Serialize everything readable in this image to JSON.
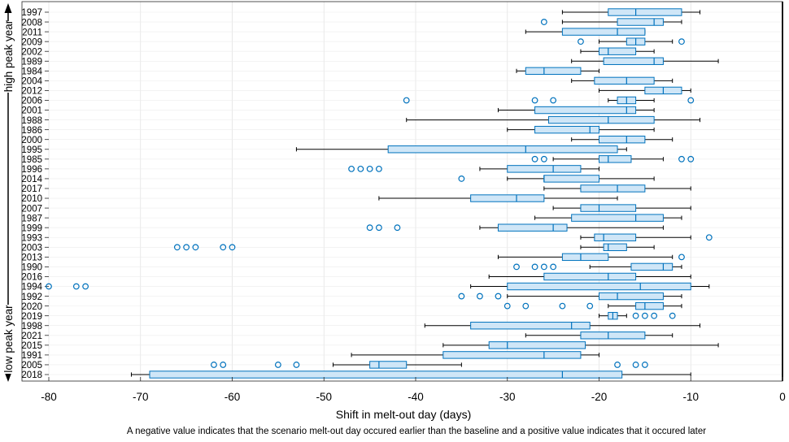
{
  "chart_data": {
    "type": "boxplot",
    "orientation": "horizontal",
    "xlabel": "Shift in melt-out day (days)",
    "caption": "A negative value indicates that the scenario melt-out day occured earlier than the baseline and a positive value indicates that it occured later",
    "ylabel_top": "high peak year",
    "ylabel_bottom": "low peak year",
    "xlim": [
      -80,
      0
    ],
    "xticks": [
      -80,
      -70,
      -60,
      -50,
      -40,
      -30,
      -20,
      -10,
      0
    ],
    "grid": true,
    "box_color": "#0072BD",
    "box_fill": "#cfe6f7",
    "whisker_color": "#000000",
    "years": [
      {
        "year": "1997",
        "wlo": -24,
        "q1": -19,
        "med": -16,
        "q3": -11,
        "whi": -9,
        "outliers": []
      },
      {
        "year": "2008",
        "wlo": -24,
        "q1": -18,
        "med": -14,
        "q3": -13,
        "whi": -11,
        "outliers": [
          -26
        ]
      },
      {
        "year": "2011",
        "wlo": -28,
        "q1": -24,
        "med": -18,
        "q3": -15,
        "whi": -15,
        "outliers": []
      },
      {
        "year": "2009",
        "wlo": -20,
        "q1": -17,
        "med": -16,
        "q3": -15,
        "whi": -12,
        "outliers": [
          -22,
          -11
        ]
      },
      {
        "year": "2002",
        "wlo": -22,
        "q1": -20,
        "med": -19,
        "q3": -16,
        "whi": -14,
        "outliers": []
      },
      {
        "year": "1989",
        "wlo": -23,
        "q1": -19.5,
        "med": -14,
        "q3": -13,
        "whi": -7,
        "outliers": []
      },
      {
        "year": "1984",
        "wlo": -29,
        "q1": -28,
        "med": -26,
        "q3": -22,
        "whi": -20,
        "outliers": []
      },
      {
        "year": "2004",
        "wlo": -23,
        "q1": -20.5,
        "med": -17,
        "q3": -14,
        "whi": -12,
        "outliers": []
      },
      {
        "year": "2012",
        "wlo": -20,
        "q1": -15,
        "med": -13,
        "q3": -11,
        "whi": -10,
        "outliers": []
      },
      {
        "year": "2006",
        "wlo": -19,
        "q1": -18,
        "med": -17,
        "q3": -16,
        "whi": -14,
        "outliers": [
          -41,
          -27,
          -25,
          -10
        ]
      },
      {
        "year": "2001",
        "wlo": -31,
        "q1": -27,
        "med": -17,
        "q3": -16,
        "whi": -14,
        "outliers": []
      },
      {
        "year": "1988",
        "wlo": -41,
        "q1": -25.5,
        "med": -19,
        "q3": -14,
        "whi": -9,
        "outliers": []
      },
      {
        "year": "1986",
        "wlo": -30,
        "q1": -27,
        "med": -21,
        "q3": -20,
        "whi": -14,
        "outliers": []
      },
      {
        "year": "2000",
        "wlo": -23,
        "q1": -20,
        "med": -17,
        "q3": -15,
        "whi": -12,
        "outliers": []
      },
      {
        "year": "1995",
        "wlo": -53,
        "q1": -43,
        "med": -28,
        "q3": -18,
        "whi": -17,
        "outliers": []
      },
      {
        "year": "1985",
        "wlo": -25,
        "q1": -20,
        "med": -19,
        "q3": -16.5,
        "whi": -13,
        "outliers": [
          -27,
          -26,
          -11,
          -10
        ]
      },
      {
        "year": "1996",
        "wlo": -33,
        "q1": -30,
        "med": -25,
        "q3": -22,
        "whi": -20,
        "outliers": [
          -47,
          -46,
          -45,
          -44
        ]
      },
      {
        "year": "2014",
        "wlo": -30,
        "q1": -26,
        "med": -26,
        "q3": -20,
        "whi": -14,
        "outliers": [
          -35
        ]
      },
      {
        "year": "2017",
        "wlo": -26,
        "q1": -22,
        "med": -18,
        "q3": -15,
        "whi": -10,
        "outliers": []
      },
      {
        "year": "2010",
        "wlo": -44,
        "q1": -34,
        "med": -29,
        "q3": -26,
        "whi": -18,
        "outliers": []
      },
      {
        "year": "2007",
        "wlo": -25,
        "q1": -22,
        "med": -20,
        "q3": -16,
        "whi": -10,
        "outliers": []
      },
      {
        "year": "1987",
        "wlo": -27,
        "q1": -23,
        "med": -16,
        "q3": -13,
        "whi": -11,
        "outliers": []
      },
      {
        "year": "1999",
        "wlo": -33,
        "q1": -31,
        "med": -25,
        "q3": -23.5,
        "whi": -13,
        "outliers": [
          -45,
          -44,
          -42
        ]
      },
      {
        "year": "1993",
        "wlo": -22,
        "q1": -20.5,
        "med": -19.5,
        "q3": -16,
        "whi": -10,
        "outliers": [
          -8
        ]
      },
      {
        "year": "2003",
        "wlo": -22,
        "q1": -19.5,
        "med": -19,
        "q3": -17,
        "whi": -14,
        "outliers": [
          -66,
          -65,
          -64,
          -61,
          -60
        ]
      },
      {
        "year": "2013",
        "wlo": -31,
        "q1": -24,
        "med": -22,
        "q3": -19,
        "whi": -12,
        "outliers": [
          -11
        ]
      },
      {
        "year": "1990",
        "wlo": -21,
        "q1": -16.5,
        "med": -13,
        "q3": -12,
        "whi": -11,
        "outliers": [
          -29,
          -27,
          -26,
          -25
        ]
      },
      {
        "year": "2016",
        "wlo": -32,
        "q1": -26,
        "med": -19,
        "q3": -16,
        "whi": -10,
        "outliers": []
      },
      {
        "year": "1994",
        "wlo": -34,
        "q1": -30,
        "med": -15.5,
        "q3": -10,
        "whi": -8,
        "outliers": [
          -80,
          -77,
          -76
        ]
      },
      {
        "year": "1992",
        "wlo": -30,
        "q1": -20,
        "med": -18,
        "q3": -13,
        "whi": -11,
        "outliers": [
          -35,
          -33,
          -31
        ]
      },
      {
        "year": "2020",
        "wlo": -19,
        "q1": -16,
        "med": -15,
        "q3": -13,
        "whi": -11,
        "outliers": [
          -30,
          -28,
          -24,
          -21
        ]
      },
      {
        "year": "2019",
        "wlo": -20,
        "q1": -19,
        "med": -18.5,
        "q3": -18,
        "whi": -17,
        "outliers": [
          -16,
          -15,
          -14,
          -12
        ]
      },
      {
        "year": "1998",
        "wlo": -39,
        "q1": -34,
        "med": -23,
        "q3": -21,
        "whi": -9,
        "outliers": []
      },
      {
        "year": "2021",
        "wlo": -28,
        "q1": -22,
        "med": -19,
        "q3": -15,
        "whi": -12,
        "outliers": []
      },
      {
        "year": "2015",
        "wlo": -37,
        "q1": -32,
        "med": -30,
        "q3": -21.5,
        "whi": -7,
        "outliers": []
      },
      {
        "year": "1991",
        "wlo": -47,
        "q1": -37,
        "med": -26,
        "q3": -22,
        "whi": -20,
        "outliers": []
      },
      {
        "year": "2005",
        "wlo": -49,
        "q1": -45,
        "med": -44,
        "q3": -41,
        "whi": -35,
        "outliers": [
          -62,
          -61,
          -55,
          -53,
          -18,
          -16,
          -15
        ]
      },
      {
        "year": "2018",
        "wlo": -71,
        "q1": -69,
        "med": -24,
        "q3": -17.5,
        "whi": -10,
        "outliers": []
      }
    ]
  }
}
